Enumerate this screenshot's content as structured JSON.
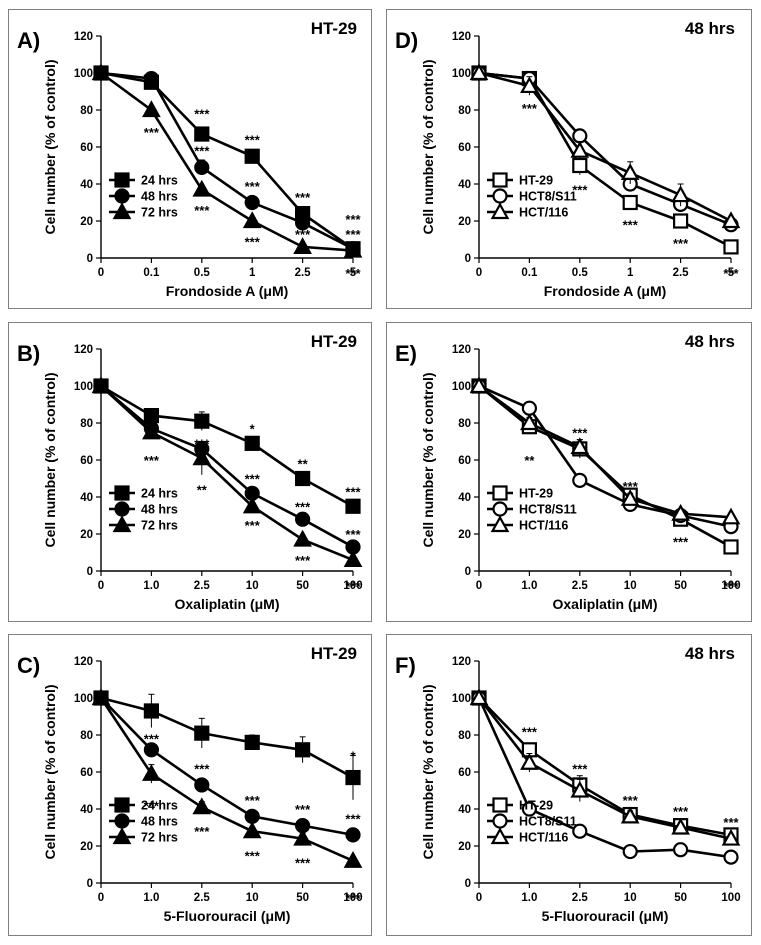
{
  "chart_data": [
    {
      "type": "line",
      "panel_letter": "A)",
      "title": "HT-29",
      "xlabel": "Frondoside A (μM)",
      "ylabel": "Cell number (% of control)",
      "categories": [
        "0",
        "0.1",
        "0.5",
        "1",
        "2.5",
        "5"
      ],
      "ylim": [
        0,
        120
      ],
      "yticks": [
        0,
        20,
        40,
        60,
        80,
        100,
        120
      ],
      "legend_position": "bottom-left",
      "series": [
        {
          "name": "24 hrs",
          "marker": "square",
          "fill": "filled",
          "values": [
            100,
            95,
            67,
            55,
            24,
            5
          ],
          "errors": [
            0,
            2,
            3,
            2,
            2,
            1
          ]
        },
        {
          "name": "48 hrs",
          "marker": "circle",
          "fill": "filled",
          "values": [
            100,
            97,
            49,
            30,
            19,
            5
          ],
          "errors": [
            0,
            2,
            4,
            2,
            2,
            1
          ]
        },
        {
          "name": "72 hrs",
          "marker": "triangle",
          "fill": "filled",
          "values": [
            100,
            80,
            37,
            20,
            6,
            4
          ],
          "errors": [
            0,
            2,
            2,
            2,
            1,
            1
          ]
        }
      ],
      "annotations": [
        {
          "x": "0.5",
          "y": 78,
          "text": "***"
        },
        {
          "x": "0.5",
          "y": 58,
          "text": "***"
        },
        {
          "x": "0.5",
          "y": 26,
          "text": "***"
        },
        {
          "x": "0.1",
          "y": 68,
          "text": "***"
        },
        {
          "x": "1",
          "y": 64,
          "text": "***"
        },
        {
          "x": "1",
          "y": 39,
          "text": "***"
        },
        {
          "x": "1",
          "y": 9,
          "text": "***"
        },
        {
          "x": "2.5",
          "y": 33,
          "text": "***"
        },
        {
          "x": "2.5",
          "y": 13,
          "text": "***"
        },
        {
          "x": "5",
          "y": 21,
          "text": "***"
        },
        {
          "x": "5",
          "y": 13,
          "text": "***"
        },
        {
          "x": "5",
          "y": -8,
          "text": "***"
        }
      ]
    },
    {
      "type": "line",
      "panel_letter": "D)",
      "title": "48 hrs",
      "xlabel": "Frondoside A (μM)",
      "ylabel": "Cell number (% of control)",
      "categories": [
        "0",
        "0.1",
        "0.5",
        "1",
        "2.5",
        "5"
      ],
      "ylim": [
        0,
        120
      ],
      "yticks": [
        0,
        20,
        40,
        60,
        80,
        100,
        120
      ],
      "legend_position": "bottom-left",
      "series": [
        {
          "name": "HT-29",
          "marker": "square",
          "fill": "open",
          "values": [
            100,
            97,
            50,
            30,
            20,
            6
          ],
          "errors": [
            0,
            3,
            5,
            3,
            2,
            1
          ]
        },
        {
          "name": "HCT8/S11",
          "marker": "circle",
          "fill": "open",
          "values": [
            100,
            97,
            66,
            40,
            29,
            18
          ],
          "errors": [
            0,
            3,
            3,
            3,
            3,
            2
          ]
        },
        {
          "name": "HCT/116",
          "marker": "triangle",
          "fill": "open",
          "values": [
            100,
            93,
            58,
            46,
            34,
            20
          ],
          "errors": [
            0,
            5,
            5,
            6,
            6,
            2
          ]
        }
      ],
      "annotations": [
        {
          "x": "0.1",
          "y": 81,
          "text": "***"
        },
        {
          "x": "0.5",
          "y": 37,
          "text": "***"
        },
        {
          "x": "1",
          "y": 18,
          "text": "***"
        },
        {
          "x": "2.5",
          "y": 8,
          "text": "***"
        },
        {
          "x": "5",
          "y": -8,
          "text": "***"
        }
      ]
    },
    {
      "type": "line",
      "panel_letter": "B)",
      "title": "HT-29",
      "xlabel": "Oxaliplatin (μM)",
      "ylabel": "Cell number (% of control)",
      "categories": [
        "0",
        "1.0",
        "2.5",
        "10",
        "50",
        "100"
      ],
      "ylim": [
        0,
        120
      ],
      "yticks": [
        0,
        20,
        40,
        60,
        80,
        100,
        120
      ],
      "legend_position": "bottom-left",
      "series": [
        {
          "name": "24 hrs",
          "marker": "square",
          "fill": "filled",
          "values": [
            100,
            84,
            81,
            69,
            50,
            35
          ],
          "errors": [
            0,
            3,
            5,
            2,
            2,
            2
          ]
        },
        {
          "name": "48 hrs",
          "marker": "circle",
          "fill": "filled",
          "values": [
            100,
            77,
            66,
            42,
            28,
            13
          ],
          "errors": [
            0,
            3,
            4,
            2,
            2,
            2
          ]
        },
        {
          "name": "72 hrs",
          "marker": "triangle",
          "fill": "filled",
          "values": [
            100,
            75,
            61,
            35,
            17,
            6
          ],
          "errors": [
            0,
            3,
            9,
            2,
            2,
            1
          ]
        }
      ],
      "annotations": [
        {
          "x": "2.5",
          "y": 69,
          "text": "***"
        },
        {
          "x": "1.0",
          "y": 60,
          "text": "***"
        },
        {
          "x": "2.5",
          "y": 44,
          "text": "**"
        },
        {
          "x": "10",
          "y": 77,
          "text": "*"
        },
        {
          "x": "10",
          "y": 50,
          "text": "***"
        },
        {
          "x": "10",
          "y": 25,
          "text": "***"
        },
        {
          "x": "50",
          "y": 58,
          "text": "**"
        },
        {
          "x": "50",
          "y": 35,
          "text": "***"
        },
        {
          "x": "50",
          "y": 6,
          "text": "***"
        },
        {
          "x": "100",
          "y": 43,
          "text": "***"
        },
        {
          "x": "100",
          "y": 20,
          "text": "***"
        },
        {
          "x": "100",
          "y": -8,
          "text": "***"
        }
      ]
    },
    {
      "type": "line",
      "panel_letter": "E)",
      "title": "48 hrs",
      "xlabel": "Oxaliplatin (μM)",
      "ylabel": "Cell number (% of control)",
      "categories": [
        "0",
        "1.0",
        "2.5",
        "10",
        "50",
        "100"
      ],
      "ylim": [
        0,
        120
      ],
      "yticks": [
        0,
        20,
        40,
        60,
        80,
        100,
        120
      ],
      "legend_position": "bottom-left",
      "series": [
        {
          "name": "HT-29",
          "marker": "square",
          "fill": "open",
          "values": [
            100,
            78,
            66,
            41,
            28,
            13
          ],
          "errors": [
            0,
            4,
            5,
            3,
            2,
            2
          ]
        },
        {
          "name": "HCT8/S11",
          "marker": "circle",
          "fill": "open",
          "values": [
            100,
            88,
            49,
            36,
            30,
            24
          ],
          "errors": [
            0,
            2,
            2,
            2,
            2,
            2
          ]
        },
        {
          "name": "HCT/116",
          "marker": "triangle",
          "fill": "open",
          "values": [
            100,
            80,
            67,
            39,
            31,
            29
          ],
          "errors": [
            0,
            3,
            4,
            3,
            2,
            2
          ]
        }
      ],
      "annotations": [
        {
          "x": "1.0",
          "y": 60,
          "text": "**"
        },
        {
          "x": "2.5",
          "y": 75,
          "text": "***"
        },
        {
          "x": "10",
          "y": 46,
          "text": "***"
        },
        {
          "x": "50",
          "y": 16,
          "text": "***"
        },
        {
          "x": "100",
          "y": -8,
          "text": "***"
        }
      ]
    },
    {
      "type": "line",
      "panel_letter": "C)",
      "title": "HT-29",
      "xlabel": "5-Fluorouracil (μM)",
      "ylabel": "Cell number (% of control)",
      "categories": [
        "0",
        "1.0",
        "2.5",
        "10",
        "50",
        "100"
      ],
      "ylim": [
        0,
        120
      ],
      "yticks": [
        0,
        20,
        40,
        60,
        80,
        100,
        120
      ],
      "legend_position": "bottom-left",
      "series": [
        {
          "name": "24 hrs",
          "marker": "square",
          "fill": "filled",
          "values": [
            100,
            93,
            81,
            76,
            72,
            57
          ],
          "errors": [
            0,
            9,
            8,
            4,
            7,
            12
          ]
        },
        {
          "name": "48 hrs",
          "marker": "circle",
          "fill": "filled",
          "values": [
            100,
            72,
            53,
            36,
            31,
            26
          ],
          "errors": [
            0,
            3,
            3,
            3,
            2,
            2
          ]
        },
        {
          "name": "72 hrs",
          "marker": "triangle",
          "fill": "filled",
          "values": [
            100,
            59,
            41,
            28,
            24,
            12
          ],
          "errors": [
            0,
            5,
            3,
            2,
            3,
            1
          ]
        }
      ],
      "annotations": [
        {
          "x": "1.0",
          "y": 78,
          "text": "***"
        },
        {
          "x": "1.0",
          "y": 42,
          "text": "***"
        },
        {
          "x": "2.5",
          "y": 62,
          "text": "***"
        },
        {
          "x": "2.5",
          "y": 28,
          "text": "***"
        },
        {
          "x": "10",
          "y": 45,
          "text": "***"
        },
        {
          "x": "10",
          "y": 15,
          "text": "***"
        },
        {
          "x": "50",
          "y": 40,
          "text": "***"
        },
        {
          "x": "50",
          "y": 11,
          "text": "***"
        },
        {
          "x": "100",
          "y": 69,
          "text": "*"
        },
        {
          "x": "100",
          "y": 35,
          "text": "***"
        },
        {
          "x": "100",
          "y": -8,
          "text": "***"
        }
      ]
    },
    {
      "type": "line",
      "panel_letter": "F)",
      "title": "48 hrs",
      "xlabel": "5-Fluorouracil (μM)",
      "ylabel": "Cell number (% of control)",
      "categories": [
        "0",
        "1.0",
        "2.5",
        "10",
        "50",
        "100"
      ],
      "ylim": [
        0,
        120
      ],
      "yticks": [
        0,
        20,
        40,
        60,
        80,
        100,
        120
      ],
      "legend_position": "bottom-left",
      "series": [
        {
          "name": "HT-29",
          "marker": "square",
          "fill": "open",
          "values": [
            100,
            72,
            53,
            37,
            31,
            26
          ],
          "errors": [
            0,
            3,
            5,
            2,
            2,
            2
          ]
        },
        {
          "name": "HCT8/S11",
          "marker": "circle",
          "fill": "open",
          "values": [
            100,
            40,
            28,
            17,
            18,
            14
          ],
          "errors": [
            0,
            2,
            2,
            2,
            2,
            2
          ]
        },
        {
          "name": "HCT/116",
          "marker": "triangle",
          "fill": "open",
          "values": [
            100,
            65,
            50,
            36,
            30,
            24
          ],
          "errors": [
            0,
            5,
            6,
            3,
            2,
            2
          ]
        }
      ],
      "annotations": [
        {
          "x": "1.0",
          "y": 82,
          "text": "***"
        },
        {
          "x": "2.5",
          "y": 62,
          "text": "***"
        },
        {
          "x": "10",
          "y": 45,
          "text": "***"
        },
        {
          "x": "50",
          "y": 39,
          "text": "***"
        },
        {
          "x": "100",
          "y": 33,
          "text": "***"
        }
      ]
    }
  ]
}
